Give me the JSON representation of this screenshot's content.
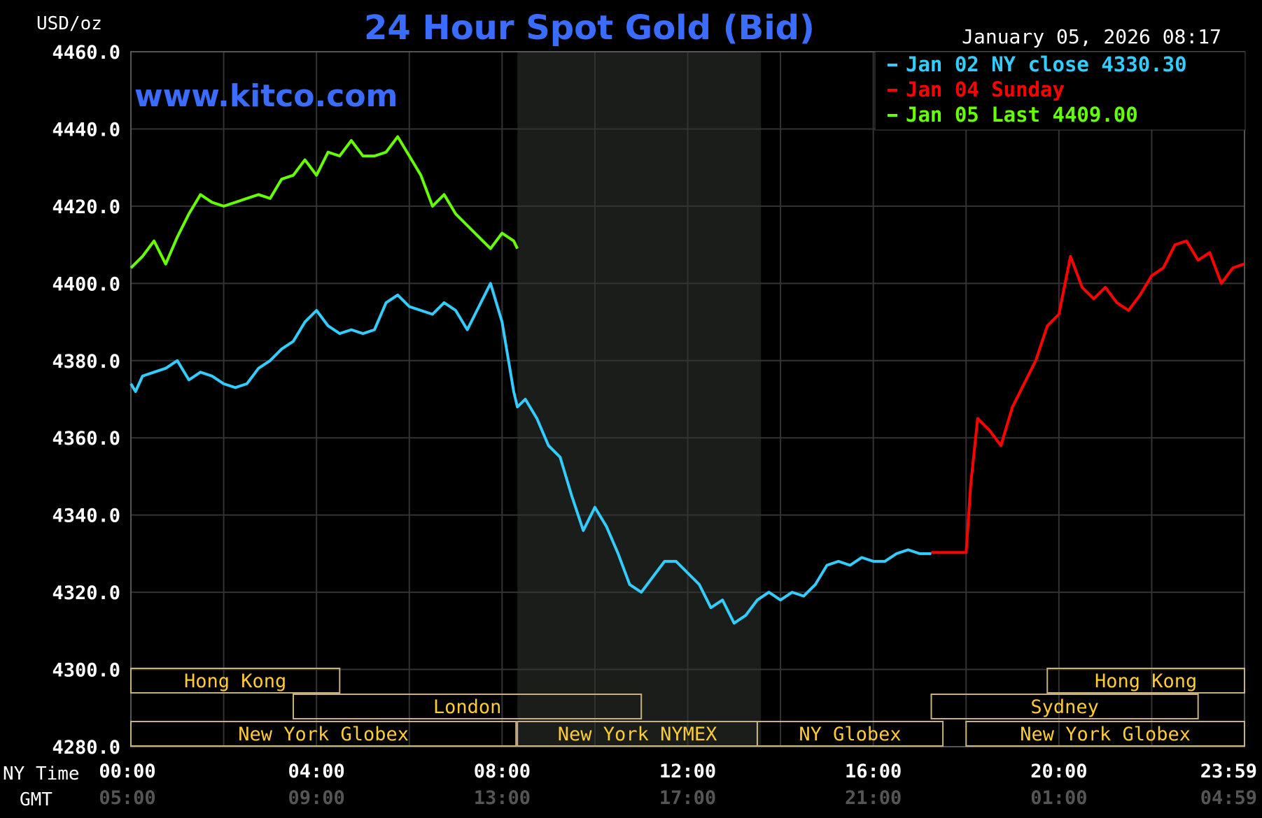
{
  "header": {
    "unit_label": "USD/oz",
    "title": "24 Hour Spot Gold (Bid)",
    "timestamp": "January 05, 2026 08:17",
    "brand": "www.kitco.com"
  },
  "legend": [
    {
      "text": "Jan 02 NY close 4330.30",
      "color": "#33ccff"
    },
    {
      "text": "Jan 04 Sunday",
      "color": "#ff0000"
    },
    {
      "text": "Jan 05 Last 4409.00",
      "color": "#66ff00"
    }
  ],
  "axis_labels": {
    "x_row1": "NY Time",
    "x_row2": "GMT"
  },
  "colors": {
    "background": "#000000",
    "grid": "#333333",
    "session_text": "#ffcc33",
    "session_border": "#c8b080",
    "shaded": "#1a1d1a",
    "gmt_text": "#555555"
  },
  "sessions": [
    {
      "label": "Hong Kong",
      "row": 1,
      "start": 0,
      "end": 4.5
    },
    {
      "label": "Hong Kong",
      "row": 1,
      "start": 19.75,
      "end": 24
    },
    {
      "label": "London",
      "row": 2,
      "start": 3.5,
      "end": 11
    },
    {
      "label": "Sydney",
      "row": 2,
      "start": 17.25,
      "end": 23
    },
    {
      "label": "New York Globex",
      "row": 3,
      "start": 0,
      "end": 8.3
    },
    {
      "label": "New York NYMEX",
      "row": 3,
      "start": 8.33,
      "end": 13.5
    },
    {
      "label": "NY Globex",
      "row": 3,
      "start": 13.5,
      "end": 17.5
    },
    {
      "label": "New York Globex",
      "row": 3,
      "start": 18,
      "end": 24
    }
  ],
  "chart_data": {
    "type": "line",
    "title": "24 Hour Spot Gold (Bid)",
    "ylabel": "USD/oz",
    "xlabel": "NY Time",
    "ylim": [
      4280,
      4460
    ],
    "xlim": [
      0,
      24
    ],
    "y_ticks": [
      4280,
      4300,
      4320,
      4340,
      4360,
      4380,
      4400,
      4420,
      4440,
      4460
    ],
    "y_tick_labels": [
      "4280.0",
      "4300.0",
      "4320.0",
      "4340.0",
      "4360.0",
      "4380.0",
      "4400.0",
      "4420.0",
      "4440.0",
      "4460.0"
    ],
    "x_ticks": [
      0,
      4,
      8,
      12,
      16,
      20,
      24
    ],
    "x_tick_labels": [
      "00:00",
      "04:00",
      "08:00",
      "12:00",
      "16:00",
      "20:00",
      "23:59"
    ],
    "x_tick_labels_gmt": [
      "05:00",
      "09:00",
      "13:00",
      "17:00",
      "21:00",
      "01:00",
      "04:59"
    ],
    "shaded_region": [
      8.33,
      13.58
    ],
    "grid": true,
    "legend_position": "top-right",
    "series": [
      {
        "name": "Jan 02 NY close 4330.30",
        "color": "#33ccff",
        "x": [
          0,
          0.1,
          0.25,
          0.5,
          0.75,
          1.0,
          1.1,
          1.25,
          1.5,
          1.75,
          2.0,
          2.25,
          2.5,
          2.75,
          3.0,
          3.25,
          3.5,
          3.75,
          4.0,
          4.25,
          4.5,
          4.75,
          5.0,
          5.25,
          5.5,
          5.75,
          6.0,
          6.25,
          6.5,
          6.75,
          7.0,
          7.25,
          7.5,
          7.75,
          8.0,
          8.25,
          8.33,
          8.5,
          8.75,
          9.0,
          9.25,
          9.5,
          9.75,
          10.0,
          10.25,
          10.5,
          10.75,
          11.0,
          11.25,
          11.5,
          11.75,
          12.0,
          12.25,
          12.5,
          12.75,
          13.0,
          13.25,
          13.5,
          13.75,
          14.0,
          14.25,
          14.5,
          14.75,
          15.0,
          15.25,
          15.5,
          15.75,
          16.0,
          16.25,
          16.5,
          16.75,
          17.0,
          17.25
        ],
        "values": [
          4374,
          4372,
          4376,
          4377,
          4378,
          4380,
          4378,
          4375,
          4377,
          4376,
          4374,
          4373,
          4374,
          4378,
          4380,
          4383,
          4385,
          4390,
          4393,
          4389,
          4387,
          4388,
          4387,
          4388,
          4395,
          4397,
          4394,
          4393,
          4392,
          4395,
          4393,
          4388,
          4394,
          4400,
          4390,
          4372,
          4368,
          4370,
          4365,
          4358,
          4355,
          4345,
          4336,
          4342,
          4337,
          4330,
          4322,
          4320,
          4324,
          4328,
          4328,
          4325,
          4322,
          4316,
          4318,
          4312,
          4314,
          4318,
          4320,
          4318,
          4320,
          4319,
          4322,
          4327,
          4328,
          4327,
          4329,
          4328,
          4328,
          4330,
          4331,
          4330,
          4330
        ]
      },
      {
        "name": "Jan 04 Sunday",
        "color": "#ff0000",
        "x": [
          17.25,
          17.5,
          17.75,
          18.0,
          18.1,
          18.25,
          18.5,
          18.75,
          19.0,
          19.25,
          19.5,
          19.75,
          20.0,
          20.25,
          20.5,
          20.75,
          21.0,
          21.25,
          21.5,
          21.75,
          22.0,
          22.25,
          22.5,
          22.75,
          23.0,
          23.25,
          23.5,
          23.75,
          23.99
        ],
        "values": [
          4330.3,
          4330.3,
          4330.3,
          4330.3,
          4348,
          4365,
          4362,
          4358,
          4368,
          4374,
          4380,
          4389,
          4392,
          4407,
          4399,
          4396,
          4399,
          4395,
          4393,
          4397,
          4402,
          4404,
          4410,
          4411,
          4406,
          4408,
          4400,
          4404,
          4405
        ]
      },
      {
        "name": "Jan 05 Last 4409.00",
        "color": "#66ff00",
        "x": [
          0,
          0.25,
          0.5,
          0.75,
          1.0,
          1.25,
          1.5,
          1.75,
          2.0,
          2.25,
          2.5,
          2.75,
          3.0,
          3.25,
          3.5,
          3.75,
          4.0,
          4.25,
          4.5,
          4.75,
          5.0,
          5.25,
          5.5,
          5.75,
          6.0,
          6.25,
          6.5,
          6.75,
          7.0,
          7.25,
          7.5,
          7.75,
          8.0,
          8.25,
          8.33
        ],
        "values": [
          4404,
          4407,
          4411,
          4405,
          4412,
          4418,
          4423,
          4421,
          4420,
          4421,
          4422,
          4423,
          4422,
          4427,
          4428,
          4432,
          4428,
          4434,
          4433,
          4437,
          4433,
          4433,
          4434,
          4438,
          4433,
          4428,
          4420,
          4423,
          4418,
          4415,
          4412,
          4409,
          4413,
          4411,
          4409
        ]
      }
    ]
  }
}
